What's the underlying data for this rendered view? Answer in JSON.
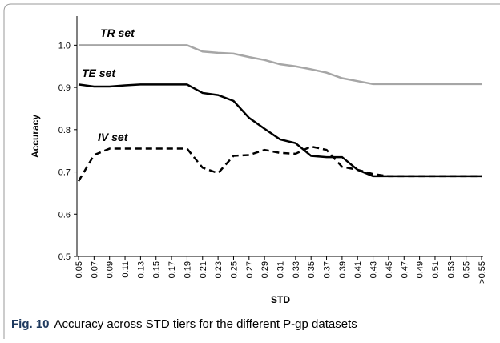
{
  "chart_data": {
    "type": "line",
    "y_label": "Accuracy",
    "x_label": "STD",
    "caption_label": "Fig. 10",
    "caption_text": "Accuracy across STD tiers for the different P-gp datasets",
    "categories": [
      "0.05",
      "0.07",
      "0.09",
      "0.11",
      "0.13",
      "0.15",
      "0.17",
      "0.19",
      "0.21",
      "0.23",
      "0.25",
      "0.27",
      "0.29",
      "0.31",
      "0.33",
      "0.35",
      "0.37",
      "0.39",
      "0.41",
      "0.43",
      "0.45",
      "0.47",
      "0.49",
      "0.51",
      "0.53",
      "0.55",
      ">0.55"
    ],
    "series": [
      {
        "name": "TR set",
        "color": "#a6a6a6",
        "linestyle": "solid",
        "values": [
          1.0,
          1.0,
          1.0,
          1.0,
          1.0,
          1.0,
          1.0,
          1.0,
          0.985,
          0.982,
          0.98,
          0.972,
          0.965,
          0.955,
          0.95,
          0.943,
          0.935,
          0.922,
          0.915,
          0.908,
          0.908,
          0.908,
          0.908,
          0.908,
          0.908,
          0.908,
          0.908
        ]
      },
      {
        "name": "TE set",
        "color": "#000000",
        "linestyle": "solid",
        "values": [
          0.907,
          0.902,
          0.902,
          0.905,
          0.907,
          0.907,
          0.907,
          0.907,
          0.887,
          0.882,
          0.868,
          0.828,
          0.802,
          0.777,
          0.768,
          0.738,
          0.735,
          0.735,
          0.705,
          0.69,
          0.69,
          0.69,
          0.69,
          0.69,
          0.69,
          0.69,
          0.69
        ]
      },
      {
        "name": "IV set",
        "color": "#000000",
        "linestyle": "dashed",
        "values": [
          0.678,
          0.74,
          0.755,
          0.755,
          0.755,
          0.755,
          0.755,
          0.755,
          0.71,
          0.697,
          0.738,
          0.74,
          0.752,
          0.745,
          0.743,
          0.76,
          0.752,
          0.712,
          0.705,
          0.695,
          0.69,
          0.69,
          0.69,
          0.69,
          0.69,
          0.69,
          0.69
        ]
      }
    ],
    "ylim": [
      0.5,
      1.05
    ],
    "yticks": [
      {
        "value": 0.5,
        "label": "0.5"
      },
      {
        "value": 0.6,
        "label": "0.6"
      },
      {
        "value": 0.7,
        "label": "0.7"
      },
      {
        "value": 0.8,
        "label": "0.8"
      },
      {
        "value": 0.9,
        "label": "0.9"
      },
      {
        "value": 1.0,
        "label": "1.0"
      }
    ]
  }
}
